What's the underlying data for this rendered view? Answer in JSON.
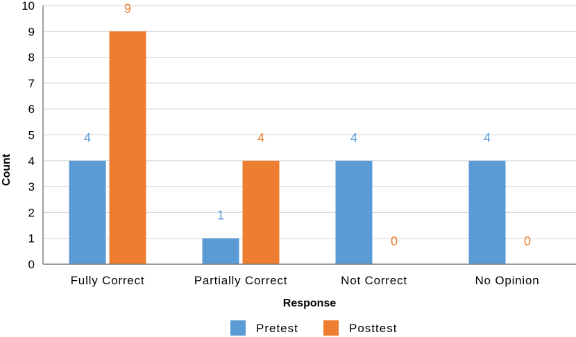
{
  "chart_data": {
    "type": "bar",
    "categories": [
      "Fully Correct",
      "Partially Correct",
      "Not Correct",
      "No Opinion"
    ],
    "series": [
      {
        "name": "Pretest",
        "values": [
          4,
          1,
          4,
          4
        ],
        "color": "#5B9BD5"
      },
      {
        "name": "Posttest",
        "values": [
          9,
          4,
          0,
          0
        ],
        "color": "#ED7D31"
      }
    ],
    "xlabel": "Response",
    "ylabel": "Count",
    "ylim": [
      0,
      10
    ],
    "yticks": [
      "0",
      "1",
      "2",
      "3",
      "4",
      "5",
      "6",
      "7",
      "8",
      "9",
      "10"
    ],
    "grid": true,
    "legend": "bottom",
    "data_labels": true
  }
}
